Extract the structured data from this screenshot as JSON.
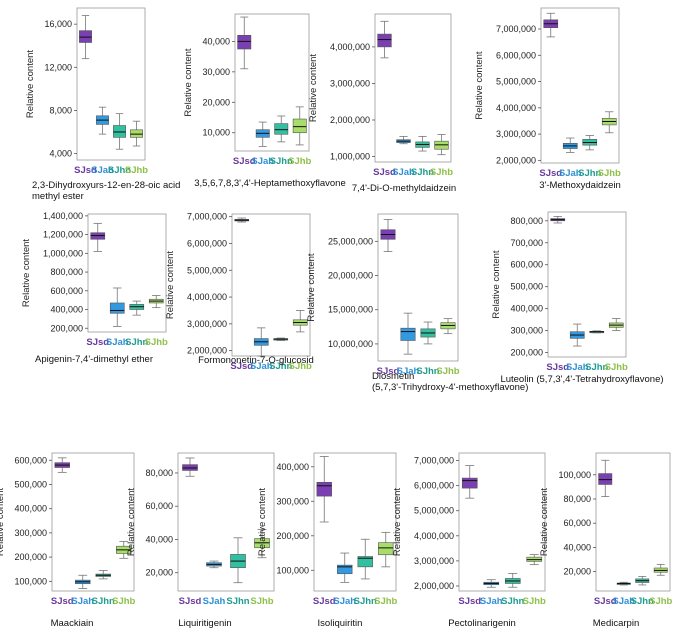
{
  "group_labels": [
    "SJsd",
    "SJah",
    "SJhn",
    "SJhb"
  ],
  "group_colors": [
    "#6a3a9c",
    "#2e8fd6",
    "#1f9d8f",
    "#8fc04a"
  ],
  "box_colors": [
    "#7a3fb0",
    "#3399e0",
    "#33c0a0",
    "#a8dd6a"
  ],
  "chart_data": [
    {
      "type": "box",
      "title": "2,3-Dihydroxyurs-12-en-28-oic acid methyl ester",
      "ylabel": "Relative content",
      "ylim": [
        3400,
        17500
      ],
      "yticks": [
        4000,
        8000,
        12000,
        16000
      ],
      "ytick_labels": [
        "4,000",
        "8,000",
        "12,000",
        "16,000"
      ],
      "series": [
        {
          "name": "SJsd",
          "min": 12800,
          "q1": 14300,
          "median": 14800,
          "q3": 15400,
          "max": 16800
        },
        {
          "name": "SJah",
          "min": 5800,
          "q1": 6700,
          "median": 7100,
          "q3": 7500,
          "max": 8300
        },
        {
          "name": "SJhn",
          "min": 4400,
          "q1": 5500,
          "median": 6000,
          "q3": 6600,
          "max": 7700
        },
        {
          "name": "SJhb",
          "min": 4700,
          "q1": 5500,
          "median": 5800,
          "q3": 6200,
          "max": 7000
        }
      ]
    },
    {
      "type": "box",
      "title": "3,5,6,7,8,3',4'-Heptamethoxyflavone",
      "ylabel": "Relative content",
      "ylim": [
        4000,
        49000
      ],
      "yticks": [
        10000,
        20000,
        30000,
        40000
      ],
      "ytick_labels": [
        "10,000",
        "20,000",
        "30,000",
        "40,000"
      ],
      "series": [
        {
          "name": "SJsd",
          "min": 31000,
          "q1": 37500,
          "median": 40000,
          "q3": 42000,
          "max": 48000
        },
        {
          "name": "SJah",
          "min": 5500,
          "q1": 8500,
          "median": 9800,
          "q3": 11000,
          "max": 13500
        },
        {
          "name": "SJhn",
          "min": 7000,
          "q1": 9500,
          "median": 11000,
          "q3": 13000,
          "max": 15500
        },
        {
          "name": "SJhb",
          "min": 6000,
          "q1": 10000,
          "median": 12000,
          "q3": 14500,
          "max": 18500
        }
      ]
    },
    {
      "type": "box",
      "title": "7,4'-Di-O-methyldaidzein",
      "ylabel": "Relative content",
      "ylim": [
        850000,
        4900000
      ],
      "yticks": [
        1000000,
        2000000,
        3000000,
        4000000
      ],
      "ytick_labels": [
        "1,000,000",
        "2,000,000",
        "3,000,000",
        "4,000,000"
      ],
      "series": [
        {
          "name": "SJsd",
          "min": 3700000,
          "q1": 4000000,
          "median": 4200000,
          "q3": 4350000,
          "max": 4700000
        },
        {
          "name": "SJah",
          "min": 1350000,
          "q1": 1380000,
          "median": 1420000,
          "q3": 1460000,
          "max": 1550000
        },
        {
          "name": "SJhn",
          "min": 1150000,
          "q1": 1250000,
          "median": 1330000,
          "q3": 1400000,
          "max": 1550000
        },
        {
          "name": "SJhb",
          "min": 1050000,
          "q1": 1200000,
          "median": 1320000,
          "q3": 1420000,
          "max": 1600000
        }
      ]
    },
    {
      "type": "box",
      "title": "3'-Methoxydaidzein",
      "ylabel": "Relative content",
      "ylim": [
        1900000,
        7800000
      ],
      "yticks": [
        2000000,
        3000000,
        4000000,
        5000000,
        6000000,
        7000000
      ],
      "ytick_labels": [
        "2,000,000",
        "3,000,000",
        "4,000,000",
        "5,000,000",
        "6,000,000",
        "7,000,000"
      ],
      "series": [
        {
          "name": "SJsd",
          "min": 6700000,
          "q1": 7050000,
          "median": 7200000,
          "q3": 7350000,
          "max": 7600000
        },
        {
          "name": "SJah",
          "min": 2300000,
          "q1": 2450000,
          "median": 2550000,
          "q3": 2650000,
          "max": 2850000
        },
        {
          "name": "SJhn",
          "min": 2400000,
          "q1": 2580000,
          "median": 2680000,
          "q3": 2800000,
          "max": 2950000
        },
        {
          "name": "SJhb",
          "min": 3050000,
          "q1": 3350000,
          "median": 3480000,
          "q3": 3600000,
          "max": 3850000
        }
      ]
    },
    {
      "type": "box",
      "title": "Apigenin-7,4'-dimethyl ether",
      "ylabel": "Relative content",
      "ylim": [
        160000,
        1420000
      ],
      "yticks": [
        200000,
        400000,
        600000,
        800000,
        1000000,
        1200000,
        1400000
      ],
      "ytick_labels": [
        "200,000",
        "400,000",
        "600,000",
        "800,000",
        "1,000,000",
        "1,200,000",
        "1,400,000"
      ],
      "series": [
        {
          "name": "SJsd",
          "min": 1020000,
          "q1": 1150000,
          "median": 1190000,
          "q3": 1220000,
          "max": 1320000
        },
        {
          "name": "SJah",
          "min": 220000,
          "q1": 360000,
          "median": 390000,
          "q3": 470000,
          "max": 630000
        },
        {
          "name": "SJhn",
          "min": 340000,
          "q1": 400000,
          "median": 430000,
          "q3": 455000,
          "max": 490000
        },
        {
          "name": "SJhb",
          "min": 420000,
          "q1": 470000,
          "median": 490000,
          "q3": 510000,
          "max": 550000
        }
      ]
    },
    {
      "type": "box",
      "title": "Formononetin-7-O-glucosid",
      "ylabel": "Relative content",
      "ylim": [
        1800000,
        7100000
      ],
      "yticks": [
        2000000,
        3000000,
        4000000,
        5000000,
        6000000,
        7000000
      ],
      "ytick_labels": [
        "2,000,000",
        "3,000,000",
        "4,000,000",
        "5,000,000",
        "6,000,000",
        "7,000,000"
      ],
      "series": [
        {
          "name": "SJsd",
          "min": 6800000,
          "q1": 6840000,
          "median": 6870000,
          "q3": 6900000,
          "max": 6950000
        },
        {
          "name": "SJah",
          "min": 1800000,
          "q1": 2200000,
          "median": 2330000,
          "q3": 2450000,
          "max": 2850000
        },
        {
          "name": "SJhn",
          "min": 2380000,
          "q1": 2410000,
          "median": 2430000,
          "q3": 2450000,
          "max": 2470000
        },
        {
          "name": "SJhb",
          "min": 2700000,
          "q1": 2950000,
          "median": 3050000,
          "q3": 3150000,
          "max": 3500000
        }
      ]
    },
    {
      "type": "box",
      "title": "Diosmetin (5,7,3'-Trihydroxy-4'-methoxyflavone)",
      "ylabel": "Relative content",
      "ylim": [
        7500000,
        29000000
      ],
      "yticks": [
        10000000,
        15000000,
        20000000,
        25000000
      ],
      "ytick_labels": [
        "10,000,000",
        "15,000,000",
        "20,000,000",
        "25,000,000"
      ],
      "series": [
        {
          "name": "SJsd",
          "min": 23500000,
          "q1": 25300000,
          "median": 26000000,
          "q3": 26700000,
          "max": 28200000
        },
        {
          "name": "SJah",
          "min": 8500000,
          "q1": 10500000,
          "median": 11800000,
          "q3": 12300000,
          "max": 14500000
        },
        {
          "name": "SJhn",
          "min": 10000000,
          "q1": 11000000,
          "median": 11600000,
          "q3": 12200000,
          "max": 13200000
        },
        {
          "name": "SJhb",
          "min": 11500000,
          "q1": 12200000,
          "median": 12700000,
          "q3": 13100000,
          "max": 13700000
        }
      ]
    },
    {
      "type": "box",
      "title": "Luteolin (5,7,3',4'-Tetrahydroxyflavone)",
      "ylabel": "Relative content",
      "ylim": [
        180000,
        840000
      ],
      "yticks": [
        200000,
        300000,
        400000,
        500000,
        600000,
        700000,
        800000
      ],
      "ytick_labels": [
        "200,000",
        "300,000",
        "400,000",
        "500,000",
        "600,000",
        "700,000",
        "800,000"
      ],
      "series": [
        {
          "name": "SJsd",
          "min": 790000,
          "q1": 800000,
          "median": 805000,
          "q3": 810000,
          "max": 820000
        },
        {
          "name": "SJah",
          "min": 230000,
          "q1": 265000,
          "median": 280000,
          "q3": 295000,
          "max": 330000
        },
        {
          "name": "SJhn",
          "min": 290000,
          "q1": 293000,
          "median": 295000,
          "q3": 297000,
          "max": 299000
        },
        {
          "name": "SJhb",
          "min": 300000,
          "q1": 315000,
          "median": 325000,
          "q3": 335000,
          "max": 355000
        }
      ]
    },
    {
      "type": "box",
      "title": "Maackiain",
      "ylabel": "Relative content",
      "ylim": [
        60000,
        630000
      ],
      "yticks": [
        100000,
        200000,
        300000,
        400000,
        500000,
        600000
      ],
      "ytick_labels": [
        "100,000",
        "200,000",
        "300,000",
        "400,000",
        "500,000",
        "600,000"
      ],
      "series": [
        {
          "name": "SJsd",
          "min": 550000,
          "q1": 570000,
          "median": 580000,
          "q3": 590000,
          "max": 610000
        },
        {
          "name": "SJah",
          "min": 70000,
          "q1": 90000,
          "median": 98000,
          "q3": 105000,
          "max": 125000
        },
        {
          "name": "SJhn",
          "min": 110000,
          "q1": 120000,
          "median": 125000,
          "q3": 130000,
          "max": 145000
        },
        {
          "name": "SJhb",
          "min": 195000,
          "q1": 215000,
          "median": 230000,
          "q3": 245000,
          "max": 265000
        }
      ]
    },
    {
      "type": "box",
      "title": "Liquiritigenin",
      "ylabel": "Relative content",
      "ylim": [
        9000,
        92000
      ],
      "yticks": [
        20000,
        40000,
        60000,
        80000
      ],
      "ytick_labels": [
        "20,000",
        "40,000",
        "60,000",
        "80,000"
      ],
      "series": [
        {
          "name": "SJsd",
          "min": 78000,
          "q1": 81500,
          "median": 83000,
          "q3": 85000,
          "max": 89000
        },
        {
          "name": "SJah",
          "min": 23000,
          "q1": 24000,
          "median": 25000,
          "q3": 26000,
          "max": 27000
        },
        {
          "name": "SJhn",
          "min": 14000,
          "q1": 23000,
          "median": 27000,
          "q3": 31000,
          "max": 41000
        },
        {
          "name": "SJhb",
          "min": 29000,
          "q1": 35000,
          "median": 38000,
          "q3": 40500,
          "max": 46000
        }
      ]
    },
    {
      "type": "box",
      "title": "Isoliquiritin",
      "ylabel": "Relative content",
      "ylim": [
        40000,
        440000
      ],
      "yticks": [
        100000,
        200000,
        300000,
        400000
      ],
      "ytick_labels": [
        "100,000",
        "200,000",
        "300,000",
        "400,000"
      ],
      "series": [
        {
          "name": "SJsd",
          "min": 240000,
          "q1": 315000,
          "median": 345000,
          "q3": 355000,
          "max": 430000
        },
        {
          "name": "SJah",
          "min": 65000,
          "q1": 90000,
          "median": 110000,
          "q3": 115000,
          "max": 150000
        },
        {
          "name": "SJhn",
          "min": 75000,
          "q1": 110000,
          "median": 135000,
          "q3": 140000,
          "max": 190000
        },
        {
          "name": "SJhb",
          "min": 110000,
          "q1": 145000,
          "median": 165000,
          "q3": 180000,
          "max": 210000
        }
      ]
    },
    {
      "type": "box",
      "title": "Pectolinarigenin",
      "ylabel": "Relative content",
      "ylim": [
        1800000,
        7300000
      ],
      "yticks": [
        2000000,
        3000000,
        4000000,
        5000000,
        6000000,
        7000000
      ],
      "ytick_labels": [
        "2,000,000",
        "3,000,000",
        "4,000,000",
        "5,000,000",
        "6,000,000",
        "7,000,000"
      ],
      "series": [
        {
          "name": "SJsd",
          "min": 5500000,
          "q1": 5900000,
          "median": 6200000,
          "q3": 6300000,
          "max": 6800000
        },
        {
          "name": "SJah",
          "min": 1950000,
          "q1": 2050000,
          "median": 2100000,
          "q3": 2150000,
          "max": 2250000
        },
        {
          "name": "SJhn",
          "min": 1950000,
          "q1": 2100000,
          "median": 2200000,
          "q3": 2300000,
          "max": 2500000
        },
        {
          "name": "SJhb",
          "min": 2850000,
          "q1": 2980000,
          "median": 3050000,
          "q3": 3150000,
          "max": 3250000
        }
      ]
    },
    {
      "type": "box",
      "title": "Medicarpin",
      "ylabel": "Relative content",
      "ylim": [
        4000,
        118000
      ],
      "yticks": [
        20000,
        40000,
        60000,
        80000,
        100000
      ],
      "ytick_labels": [
        "20,000",
        "40,000",
        "60,000",
        "80,000",
        "100,000"
      ],
      "series": [
        {
          "name": "SJsd",
          "min": 82000,
          "q1": 92000,
          "median": 96000,
          "q3": 101000,
          "max": 112000
        },
        {
          "name": "SJah",
          "min": 9000,
          "q1": 9800,
          "median": 10200,
          "q3": 10600,
          "max": 11200
        },
        {
          "name": "SJhn",
          "min": 9000,
          "q1": 11000,
          "median": 12500,
          "q3": 14000,
          "max": 16000
        },
        {
          "name": "SJhb",
          "min": 17000,
          "q1": 19500,
          "median": 21000,
          "q3": 23000,
          "max": 26000
        }
      ]
    }
  ]
}
